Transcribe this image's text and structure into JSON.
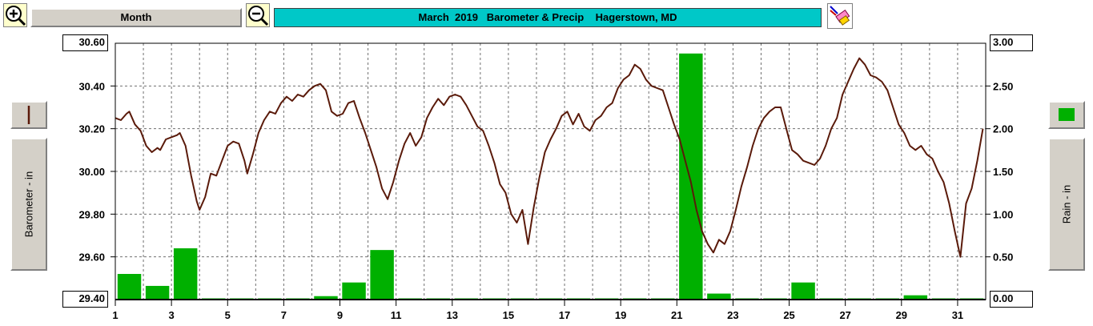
{
  "toolbar": {
    "zoom_in_icon": "zoom-in-icon",
    "zoom_out_icon": "zoom-out-icon",
    "period_label": "Month",
    "title_parts": [
      "March  2019",
      "Barometer & Precip",
      "Hagerstown, MD"
    ],
    "eraser_icon": "eraser-icon"
  },
  "left_panel": {
    "legend_icon": "barometer-line-icon",
    "axis_label": "Barometer - in",
    "line_color": "#5a1a0a"
  },
  "right_panel": {
    "legend_icon": "rain-bar-icon",
    "axis_label": "Rain - in",
    "bar_color": "#00b000"
  },
  "chart_data": {
    "type": "line+bar",
    "x_ticks": [
      "1",
      "3",
      "5",
      "7",
      "9",
      "11",
      "13",
      "15",
      "17",
      "19",
      "21",
      "23",
      "25",
      "27",
      "29",
      "31"
    ],
    "xlim": [
      1,
      32
    ],
    "y_left": {
      "label": "Barometer - in",
      "ylim": [
        29.4,
        30.6
      ],
      "ticks": [
        "30.60",
        "30.40",
        "30.20",
        "30.00",
        "29.80",
        "29.60",
        "29.40"
      ],
      "tick_values": [
        30.6,
        30.4,
        30.2,
        30.0,
        29.8,
        29.6,
        29.4
      ]
    },
    "y_right": {
      "label": "Rain - in",
      "ylim": [
        0,
        3
      ],
      "ticks": [
        "3.00",
        "2.50",
        "2.00",
        "1.50",
        "1.00",
        "0.50",
        "0.00"
      ],
      "tick_values": [
        3.0,
        2.5,
        2.0,
        1.5,
        1.0,
        0.5,
        0.0
      ]
    },
    "grid": true,
    "series": [
      {
        "name": "Barometer - in",
        "type": "line",
        "color": "#5a1a0a",
        "x": [
          1.0,
          1.2,
          1.4,
          1.5,
          1.7,
          1.9,
          2.1,
          2.3,
          2.5,
          2.6,
          2.8,
          3.0,
          3.2,
          3.3,
          3.5,
          3.7,
          3.9,
          4.0,
          4.2,
          4.4,
          4.6,
          4.8,
          5.0,
          5.2,
          5.4,
          5.6,
          5.7,
          5.9,
          6.1,
          6.3,
          6.5,
          6.7,
          6.9,
          7.1,
          7.3,
          7.5,
          7.7,
          7.9,
          8.1,
          8.3,
          8.5,
          8.7,
          8.9,
          9.1,
          9.3,
          9.5,
          9.7,
          9.9,
          10.1,
          10.3,
          10.5,
          10.7,
          10.9,
          11.1,
          11.3,
          11.5,
          11.7,
          11.9,
          12.1,
          12.3,
          12.5,
          12.7,
          12.9,
          13.1,
          13.3,
          13.5,
          13.7,
          13.9,
          14.1,
          14.3,
          14.5,
          14.7,
          14.9,
          15.1,
          15.3,
          15.5,
          15.7,
          15.9,
          16.1,
          16.3,
          16.5,
          16.7,
          16.9,
          17.1,
          17.3,
          17.5,
          17.7,
          17.9,
          18.1,
          18.3,
          18.5,
          18.7,
          18.9,
          19.1,
          19.3,
          19.5,
          19.7,
          19.9,
          20.1,
          20.3,
          20.5,
          20.7,
          20.9,
          21.1,
          21.3,
          21.5,
          21.7,
          21.9,
          22.1,
          22.3,
          22.5,
          22.7,
          22.9,
          23.1,
          23.3,
          23.5,
          23.7,
          23.9,
          24.1,
          24.3,
          24.5,
          24.7,
          24.9,
          25.1,
          25.3,
          25.5,
          25.7,
          25.9,
          26.1,
          26.3,
          26.5,
          26.7,
          26.9,
          27.1,
          27.3,
          27.5,
          27.7,
          27.9,
          28.1,
          28.3,
          28.5,
          28.7,
          28.9,
          29.1,
          29.3,
          29.5,
          29.7,
          29.9,
          30.1,
          30.3,
          30.5,
          30.7,
          30.9,
          31.1,
          31.3,
          31.5,
          31.7,
          31.9
        ],
        "values": [
          30.25,
          30.24,
          30.27,
          30.28,
          30.22,
          30.19,
          30.12,
          30.09,
          30.11,
          30.1,
          30.15,
          30.16,
          30.17,
          30.18,
          30.12,
          29.98,
          29.86,
          29.82,
          29.88,
          29.99,
          29.98,
          30.05,
          30.12,
          30.14,
          30.13,
          30.05,
          29.99,
          30.08,
          30.18,
          30.24,
          30.28,
          30.27,
          30.32,
          30.35,
          30.33,
          30.36,
          30.35,
          30.38,
          30.4,
          30.41,
          30.38,
          30.28,
          30.26,
          30.27,
          30.32,
          30.33,
          30.25,
          30.18,
          30.1,
          30.02,
          29.92,
          29.87,
          29.95,
          30.05,
          30.13,
          30.18,
          30.12,
          30.16,
          30.25,
          30.3,
          30.34,
          30.31,
          30.35,
          30.36,
          30.35,
          30.31,
          30.26,
          30.21,
          30.19,
          30.12,
          30.04,
          29.94,
          29.9,
          29.8,
          29.76,
          29.82,
          29.66,
          29.83,
          29.97,
          30.09,
          30.15,
          30.2,
          30.26,
          30.28,
          30.22,
          30.27,
          30.21,
          30.19,
          30.24,
          30.26,
          30.3,
          30.32,
          30.39,
          30.43,
          30.45,
          30.5,
          30.48,
          30.43,
          30.4,
          30.39,
          30.38,
          30.3,
          30.22,
          30.15,
          30.05,
          29.95,
          29.82,
          29.72,
          29.66,
          29.62,
          29.68,
          29.66,
          29.72,
          29.82,
          29.93,
          30.02,
          30.12,
          30.2,
          30.25,
          30.28,
          30.3,
          30.3,
          30.2,
          30.1,
          30.08,
          30.05,
          30.04,
          30.03,
          30.06,
          30.12,
          30.2,
          30.25,
          30.36,
          30.42,
          30.48,
          30.53,
          30.5,
          30.45,
          30.44,
          30.42,
          30.38,
          30.3,
          30.22,
          30.18,
          30.12,
          30.1,
          30.12,
          30.08,
          30.06,
          30.0,
          29.95,
          29.85,
          29.72,
          29.6,
          29.85,
          29.92,
          30.05,
          30.2
        ]
      },
      {
        "name": "Rain - in",
        "type": "bar",
        "color": "#00b000",
        "days": [
          1,
          2,
          3,
          4,
          5,
          6,
          7,
          8,
          9,
          10,
          11,
          12,
          13,
          14,
          15,
          16,
          17,
          18,
          19,
          20,
          21,
          22,
          23,
          24,
          25,
          26,
          27,
          28,
          29,
          30,
          31
        ],
        "values": [
          0.3,
          0.16,
          0.6,
          0.0,
          0.0,
          0.0,
          0.0,
          0.04,
          0.2,
          0.58,
          0.0,
          0.0,
          0.0,
          0.0,
          0.0,
          0.0,
          0.0,
          0.0,
          0.0,
          0.0,
          2.88,
          0.07,
          0.0,
          0.0,
          0.2,
          0.0,
          0.0,
          0.0,
          0.05,
          0.0,
          0.0
        ]
      }
    ]
  }
}
